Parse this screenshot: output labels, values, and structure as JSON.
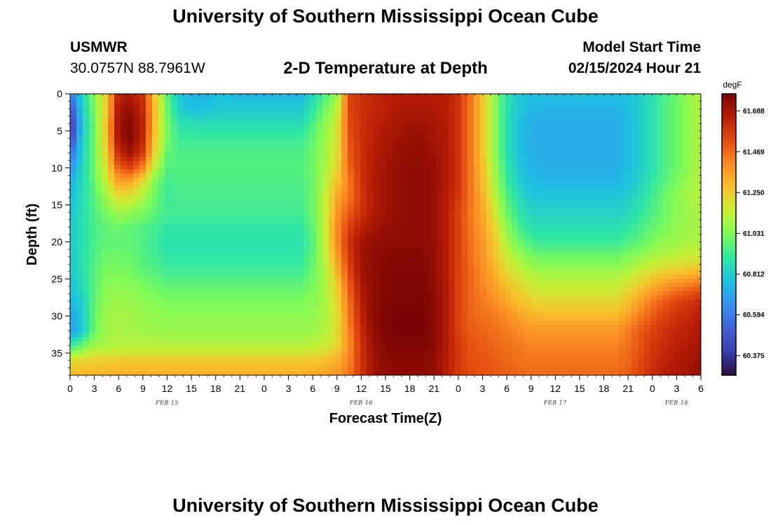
{
  "header": {
    "title_top": "University of Southern Mississippi Ocean Cube",
    "title_bottom": "University of Southern Mississippi Ocean Cube",
    "station_name": "USMWR",
    "station_coords": "30.0757N  88.7961W",
    "subtitle": "2-D Temperature at Depth",
    "start_label": "Model Start Time",
    "start_value": "02/15/2024 Hour 21"
  },
  "chart_data": {
    "type": "heatmap",
    "xlabel": "Forecast Time(Z)",
    "ylabel": "Depth (ft)",
    "x_range_hours": [
      0,
      78
    ],
    "ylim": [
      0,
      38
    ],
    "y_inverted": true,
    "x_tick_labels": [
      "0",
      "3",
      "6",
      "9",
      "12",
      "15",
      "18",
      "21",
      "0",
      "3",
      "6",
      "9",
      "12",
      "15",
      "18",
      "21",
      "0",
      "3",
      "6",
      "9",
      "12",
      "15",
      "18",
      "21",
      "0",
      "3",
      "6"
    ],
    "y_ticks": [
      0,
      5,
      10,
      15,
      20,
      25,
      30,
      35
    ],
    "day_labels": [
      {
        "text": "FEB 15",
        "hour": 12
      },
      {
        "text": "FEB 16",
        "hour": 36
      },
      {
        "text": "FEB 17",
        "hour": 60
      },
      {
        "text": "FEB 18",
        "hour": 75
      }
    ],
    "colorbar": {
      "unit": "degF",
      "min": 60.27,
      "max": 61.78,
      "tick_labels": [
        "61.688",
        "61.469",
        "61.250",
        "61.031",
        "60.812",
        "60.594",
        "60.375"
      ],
      "tick_values": [
        61.688,
        61.469,
        61.25,
        61.031,
        60.812,
        60.594,
        60.375
      ],
      "colors": [
        "#2a0e3a",
        "#3b3fae",
        "#4461d6",
        "#3a90f2",
        "#1cc1e0",
        "#2ee6a5",
        "#7dfa58",
        "#c8ef34",
        "#f8c22c",
        "#fb8d24",
        "#e44d10",
        "#b81e05",
        "#7a0403"
      ]
    },
    "grid_columns_hours": [
      0,
      1.5,
      3,
      4.5,
      6,
      7.5,
      9,
      10.5,
      12,
      13.5,
      15,
      16.5,
      18,
      19.5,
      21,
      22.5,
      24,
      25.5,
      27,
      28.5,
      30,
      31.5,
      33,
      34.5,
      36,
      37.5,
      39,
      40.5,
      42,
      43.5,
      45,
      46.5,
      48,
      49.5,
      51,
      52.5,
      54,
      55.5,
      57,
      58.5,
      60,
      61.5,
      63,
      64.5,
      66,
      67.5,
      69,
      70.5,
      72,
      73.5,
      75,
      76.5,
      78
    ],
    "grid_rows_depth_ft": [
      0,
      2,
      4,
      6,
      8,
      10,
      12,
      14,
      16,
      18,
      20,
      22,
      24,
      26,
      28,
      30,
      32,
      34,
      36,
      38
    ],
    "values": [
      [
        60.56,
        60.85,
        61.05,
        61.25,
        61.65,
        61.66,
        61.6,
        61.25,
        60.98,
        60.79,
        60.74,
        60.74,
        60.77,
        60.77,
        60.74,
        60.74,
        60.74,
        60.74,
        60.74,
        60.74,
        60.85,
        60.95,
        61.05,
        61.55,
        61.6,
        61.63,
        61.65,
        61.66,
        61.66,
        61.66,
        61.66,
        61.65,
        61.6,
        61.45,
        61.26,
        61.05,
        60.88,
        60.8,
        60.77,
        60.77,
        60.77,
        60.77,
        60.77,
        60.77,
        60.77,
        60.77,
        60.77,
        60.82,
        60.88,
        60.95,
        61.0,
        61.06,
        61.12
      ],
      [
        60.45,
        60.82,
        61.02,
        61.25,
        61.7,
        61.72,
        61.62,
        61.28,
        61.0,
        60.82,
        60.77,
        60.77,
        60.8,
        60.8,
        60.8,
        60.8,
        60.8,
        60.8,
        60.8,
        60.8,
        60.9,
        61.0,
        61.12,
        61.55,
        61.6,
        61.63,
        61.65,
        61.67,
        61.68,
        61.68,
        61.67,
        61.65,
        61.6,
        61.45,
        61.26,
        61.05,
        60.88,
        60.8,
        60.75,
        60.74,
        60.74,
        60.74,
        60.74,
        60.74,
        60.74,
        60.74,
        60.77,
        60.82,
        60.88,
        60.95,
        61.0,
        61.06,
        61.12
      ],
      [
        60.36,
        60.8,
        61.0,
        61.28,
        61.72,
        61.75,
        61.64,
        61.28,
        61.02,
        60.88,
        60.87,
        60.86,
        60.86,
        60.86,
        60.86,
        60.86,
        60.86,
        60.86,
        60.86,
        60.86,
        60.95,
        61.05,
        61.17,
        61.54,
        61.6,
        61.64,
        61.66,
        61.69,
        61.7,
        61.7,
        61.69,
        61.66,
        61.6,
        61.45,
        61.26,
        61.05,
        60.88,
        60.78,
        60.72,
        60.72,
        60.72,
        60.72,
        60.72,
        60.72,
        60.72,
        60.72,
        60.76,
        60.82,
        60.88,
        60.95,
        61.0,
        61.06,
        61.12
      ],
      [
        60.4,
        60.82,
        61.0,
        61.28,
        61.7,
        61.76,
        61.62,
        61.26,
        61.02,
        60.92,
        60.92,
        60.92,
        60.92,
        60.92,
        60.92,
        60.92,
        60.92,
        60.92,
        60.92,
        60.92,
        60.98,
        61.07,
        61.18,
        61.52,
        61.6,
        61.65,
        61.68,
        61.7,
        61.72,
        61.72,
        61.7,
        61.67,
        61.6,
        61.45,
        61.26,
        61.05,
        60.88,
        60.78,
        60.72,
        60.72,
        60.72,
        60.72,
        60.72,
        60.72,
        60.72,
        60.72,
        60.76,
        60.82,
        60.88,
        60.95,
        61.0,
        61.06,
        61.12
      ],
      [
        60.54,
        60.84,
        61.0,
        61.25,
        61.63,
        61.7,
        61.58,
        61.22,
        60.98,
        60.95,
        60.95,
        60.95,
        60.95,
        60.95,
        60.95,
        60.95,
        60.95,
        60.95,
        60.95,
        60.95,
        61.0,
        61.08,
        61.2,
        61.5,
        61.6,
        61.66,
        61.69,
        61.72,
        61.73,
        61.73,
        61.71,
        61.67,
        61.6,
        61.45,
        61.26,
        61.05,
        60.88,
        60.78,
        60.73,
        60.72,
        60.72,
        60.72,
        60.72,
        60.72,
        60.72,
        60.72,
        60.76,
        60.82,
        60.88,
        60.95,
        61.0,
        61.06,
        61.12
      ],
      [
        60.64,
        60.85,
        61.0,
        61.2,
        61.5,
        61.55,
        61.42,
        61.12,
        60.96,
        60.96,
        60.96,
        60.96,
        60.96,
        60.96,
        60.96,
        60.96,
        60.96,
        60.96,
        60.96,
        60.96,
        61.0,
        61.1,
        61.22,
        61.48,
        61.6,
        61.66,
        61.7,
        61.72,
        61.74,
        61.74,
        61.72,
        61.67,
        61.6,
        61.45,
        61.28,
        61.08,
        60.9,
        60.8,
        60.74,
        60.73,
        60.73,
        60.73,
        60.73,
        60.73,
        60.73,
        60.73,
        60.76,
        60.82,
        60.88,
        60.95,
        61.0,
        61.06,
        61.12
      ],
      [
        60.72,
        60.86,
        60.98,
        61.15,
        61.35,
        61.32,
        61.2,
        61.02,
        60.93,
        60.95,
        60.95,
        60.95,
        60.95,
        60.95,
        60.95,
        60.95,
        60.95,
        60.95,
        60.95,
        60.95,
        61.0,
        61.12,
        61.28,
        61.44,
        61.6,
        61.67,
        61.7,
        61.73,
        61.74,
        61.74,
        61.72,
        61.67,
        61.6,
        61.45,
        61.29,
        61.1,
        60.92,
        60.82,
        60.76,
        60.75,
        60.75,
        60.75,
        60.75,
        60.75,
        60.75,
        60.75,
        60.78,
        60.84,
        60.9,
        60.97,
        61.02,
        61.08,
        61.12
      ],
      [
        60.76,
        60.87,
        60.96,
        61.08,
        61.2,
        61.18,
        61.1,
        61.0,
        60.92,
        60.94,
        60.94,
        60.94,
        60.94,
        60.94,
        60.94,
        60.94,
        60.94,
        60.94,
        60.94,
        60.94,
        61.0,
        61.14,
        61.34,
        61.45,
        61.58,
        61.66,
        61.7,
        61.73,
        61.74,
        61.74,
        61.72,
        61.66,
        61.58,
        61.45,
        61.32,
        61.14,
        60.96,
        60.86,
        60.8,
        60.79,
        60.79,
        60.79,
        60.79,
        60.79,
        60.79,
        60.79,
        60.82,
        60.87,
        60.93,
        61.0,
        61.05,
        61.1,
        61.12
      ],
      [
        60.78,
        60.88,
        60.95,
        61.02,
        61.08,
        61.06,
        61.02,
        60.97,
        60.93,
        60.93,
        60.93,
        60.93,
        60.93,
        60.93,
        60.93,
        60.93,
        60.93,
        60.93,
        60.93,
        60.93,
        61.0,
        61.14,
        61.38,
        61.5,
        61.6,
        61.67,
        61.7,
        61.73,
        61.74,
        61.74,
        61.72,
        61.66,
        61.56,
        61.44,
        61.34,
        61.18,
        61.0,
        60.9,
        60.84,
        60.83,
        60.83,
        60.83,
        60.83,
        60.83,
        60.83,
        60.83,
        60.86,
        60.9,
        60.95,
        61.0,
        61.04,
        61.08,
        61.1
      ],
      [
        60.8,
        60.88,
        60.94,
        60.98,
        61.0,
        60.98,
        60.96,
        60.94,
        60.9,
        60.9,
        60.9,
        60.9,
        60.9,
        60.9,
        60.9,
        60.9,
        60.9,
        60.9,
        60.9,
        60.9,
        60.98,
        61.14,
        61.4,
        61.56,
        61.64,
        61.7,
        61.72,
        61.74,
        61.74,
        61.74,
        61.72,
        61.66,
        61.56,
        61.45,
        61.36,
        61.22,
        61.05,
        60.94,
        60.88,
        60.87,
        60.87,
        60.87,
        60.87,
        60.87,
        60.87,
        60.87,
        60.9,
        60.94,
        60.98,
        61.02,
        61.06,
        61.08,
        61.1
      ],
      [
        60.8,
        60.88,
        60.94,
        60.98,
        60.98,
        60.98,
        60.95,
        60.92,
        60.88,
        60.88,
        60.88,
        60.88,
        60.88,
        60.88,
        60.88,
        60.88,
        60.88,
        60.88,
        60.88,
        60.88,
        60.97,
        61.14,
        61.4,
        61.6,
        61.7,
        61.73,
        61.74,
        61.74,
        61.74,
        61.74,
        61.72,
        61.66,
        61.56,
        61.46,
        61.38,
        61.26,
        61.1,
        61.0,
        60.94,
        60.92,
        60.92,
        60.92,
        60.92,
        60.92,
        60.92,
        60.92,
        60.95,
        60.98,
        61.02,
        61.06,
        61.08,
        61.1,
        61.1
      ],
      [
        60.8,
        60.88,
        60.95,
        61.0,
        61.0,
        60.99,
        60.96,
        60.93,
        60.9,
        60.9,
        60.9,
        60.9,
        60.9,
        60.9,
        60.9,
        60.9,
        60.9,
        60.9,
        60.9,
        60.9,
        60.98,
        61.12,
        61.36,
        61.58,
        61.7,
        61.74,
        61.75,
        61.76,
        61.76,
        61.76,
        61.73,
        61.66,
        61.56,
        61.46,
        61.38,
        61.28,
        61.16,
        61.08,
        61.02,
        61.0,
        61.0,
        61.0,
        61.0,
        61.0,
        61.0,
        61.0,
        61.03,
        61.06,
        61.1,
        61.12,
        61.14,
        61.16,
        61.16
      ],
      [
        60.8,
        60.88,
        60.96,
        61.02,
        61.02,
        61.01,
        60.98,
        60.96,
        60.93,
        60.93,
        60.93,
        60.93,
        60.93,
        60.93,
        60.93,
        60.93,
        60.93,
        60.93,
        60.93,
        60.93,
        61.0,
        61.1,
        61.3,
        61.55,
        61.7,
        61.74,
        61.76,
        61.76,
        61.76,
        61.76,
        61.73,
        61.66,
        61.56,
        61.48,
        61.4,
        61.32,
        61.22,
        61.16,
        61.1,
        61.08,
        61.08,
        61.08,
        61.08,
        61.08,
        61.08,
        61.08,
        61.11,
        61.16,
        61.2,
        61.24,
        61.26,
        61.28,
        61.3
      ],
      [
        60.78,
        60.86,
        60.97,
        61.04,
        61.05,
        61.04,
        61.02,
        61.0,
        60.98,
        60.98,
        60.98,
        60.98,
        60.98,
        60.98,
        60.98,
        60.98,
        60.98,
        60.98,
        60.98,
        60.98,
        61.02,
        61.1,
        61.25,
        61.5,
        61.68,
        61.74,
        61.76,
        61.77,
        61.77,
        61.77,
        61.74,
        61.67,
        61.56,
        61.48,
        61.42,
        61.36,
        61.28,
        61.22,
        61.17,
        61.15,
        61.15,
        61.15,
        61.15,
        61.15,
        61.15,
        61.15,
        61.2,
        61.26,
        61.32,
        61.38,
        61.42,
        61.45,
        61.48
      ],
      [
        60.74,
        60.82,
        60.98,
        61.06,
        61.08,
        61.07,
        61.05,
        61.04,
        61.02,
        61.02,
        61.02,
        61.02,
        61.02,
        61.02,
        61.02,
        61.02,
        61.02,
        61.02,
        61.02,
        61.02,
        61.04,
        61.1,
        61.22,
        61.46,
        61.66,
        61.74,
        61.76,
        61.77,
        61.77,
        61.77,
        61.75,
        61.67,
        61.56,
        61.48,
        61.44,
        61.4,
        61.34,
        61.28,
        61.24,
        61.22,
        61.22,
        61.22,
        61.22,
        61.22,
        61.22,
        61.22,
        61.28,
        61.36,
        61.44,
        61.5,
        61.55,
        61.58,
        61.62
      ],
      [
        60.7,
        60.8,
        60.99,
        61.08,
        61.1,
        61.09,
        61.07,
        61.06,
        61.05,
        61.05,
        61.05,
        61.05,
        61.05,
        61.05,
        61.05,
        61.05,
        61.05,
        61.05,
        61.05,
        61.05,
        61.06,
        61.1,
        61.2,
        61.44,
        61.64,
        61.74,
        61.77,
        61.78,
        61.78,
        61.78,
        61.75,
        61.67,
        61.56,
        61.49,
        61.46,
        61.44,
        61.4,
        61.35,
        61.32,
        61.3,
        61.3,
        61.3,
        61.3,
        61.3,
        61.3,
        61.3,
        61.36,
        61.44,
        61.5,
        61.56,
        61.6,
        61.62,
        61.66
      ],
      [
        60.68,
        60.8,
        61.0,
        61.08,
        61.1,
        61.09,
        61.08,
        61.08,
        61.07,
        61.07,
        61.07,
        61.07,
        61.07,
        61.07,
        61.07,
        61.07,
        61.07,
        61.07,
        61.07,
        61.07,
        61.08,
        61.11,
        61.2,
        61.42,
        61.62,
        61.73,
        61.77,
        61.78,
        61.78,
        61.78,
        61.75,
        61.67,
        61.56,
        61.5,
        61.48,
        61.46,
        61.44,
        61.4,
        61.38,
        61.38,
        61.38,
        61.38,
        61.38,
        61.38,
        61.38,
        61.38,
        61.44,
        61.5,
        61.56,
        61.6,
        61.63,
        61.65,
        61.68
      ],
      [
        60.9,
        61.0,
        61.08,
        61.1,
        61.12,
        61.12,
        61.12,
        61.12,
        61.12,
        61.12,
        61.12,
        61.12,
        61.12,
        61.12,
        61.12,
        61.12,
        61.12,
        61.12,
        61.12,
        61.12,
        61.13,
        61.16,
        61.22,
        61.4,
        61.6,
        61.72,
        61.76,
        61.77,
        61.77,
        61.77,
        61.75,
        61.67,
        61.58,
        61.52,
        61.5,
        61.48,
        61.46,
        61.44,
        61.42,
        61.42,
        61.42,
        61.42,
        61.42,
        61.42,
        61.42,
        61.42,
        61.46,
        61.52,
        61.58,
        61.62,
        61.65,
        61.67,
        61.7
      ],
      [
        61.2,
        61.22,
        61.24,
        61.24,
        61.25,
        61.25,
        61.25,
        61.25,
        61.25,
        61.25,
        61.25,
        61.25,
        61.25,
        61.25,
        61.25,
        61.25,
        61.25,
        61.25,
        61.25,
        61.25,
        61.26,
        61.28,
        61.32,
        61.42,
        61.6,
        61.7,
        61.74,
        61.75,
        61.75,
        61.75,
        61.73,
        61.66,
        61.58,
        61.53,
        61.51,
        61.5,
        61.48,
        61.46,
        61.45,
        61.45,
        61.45,
        61.45,
        61.45,
        61.45,
        61.45,
        61.45,
        61.48,
        61.54,
        61.6,
        61.64,
        61.67,
        61.69,
        61.72
      ],
      [
        61.3,
        61.31,
        61.32,
        61.32,
        61.33,
        61.33,
        61.33,
        61.33,
        61.33,
        61.33,
        61.33,
        61.33,
        61.33,
        61.33,
        61.33,
        61.33,
        61.33,
        61.33,
        61.33,
        61.33,
        61.34,
        61.36,
        61.38,
        61.44,
        61.6,
        61.7,
        61.74,
        61.75,
        61.75,
        61.75,
        61.73,
        61.66,
        61.58,
        61.54,
        61.52,
        61.51,
        61.5,
        61.48,
        61.47,
        61.47,
        61.47,
        61.47,
        61.47,
        61.47,
        61.47,
        61.47,
        61.5,
        61.56,
        61.62,
        61.66,
        61.68,
        61.7,
        61.73
      ]
    ]
  }
}
